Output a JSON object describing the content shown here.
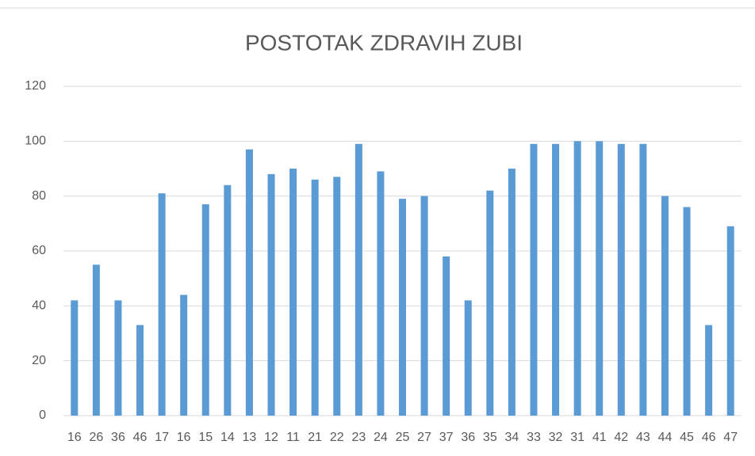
{
  "chart_data": {
    "type": "bar",
    "title": "POSTOTAK ZDRAVIH ZUBI",
    "categories": [
      "16",
      "26",
      "36",
      "46",
      "17",
      "16",
      "15",
      "14",
      "13",
      "12",
      "11",
      "21",
      "22",
      "23",
      "24",
      "25",
      "27",
      "37",
      "36",
      "35",
      "34",
      "33",
      "32",
      "31",
      "41",
      "42",
      "43",
      "44",
      "45",
      "46",
      "47"
    ],
    "values": [
      42,
      55,
      42,
      33,
      81,
      44,
      77,
      84,
      97,
      88,
      90,
      86,
      87,
      99,
      89,
      79,
      80,
      58,
      42,
      82,
      90,
      99,
      99,
      100,
      100,
      99,
      99,
      80,
      76,
      33,
      69
    ],
    "color": "#5b9bd5",
    "ylim": [
      0,
      120
    ],
    "yticks": [
      0,
      20,
      40,
      60,
      80,
      100,
      120
    ],
    "grid": true
  }
}
